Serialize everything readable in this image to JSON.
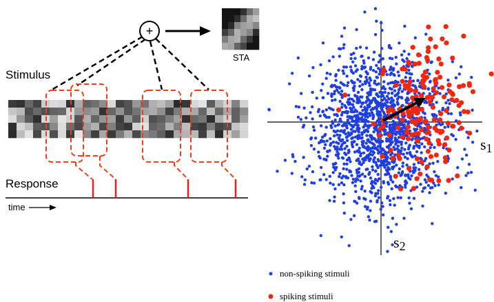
{
  "sum_node": "+",
  "sta_label": "STA",
  "stimulus_label": "Stimulus",
  "response_label": "Response",
  "time_label": "time",
  "axes": {
    "x_label": {
      "text": "s",
      "subscript": "1"
    },
    "y_label": {
      "text": "s",
      "subscript": "2"
    }
  },
  "legend": [
    {
      "name": "non-spiking stimuli",
      "color": "#1f3fe0"
    },
    {
      "name": "spiking stimuli",
      "color": "#f02810"
    }
  ]
}
